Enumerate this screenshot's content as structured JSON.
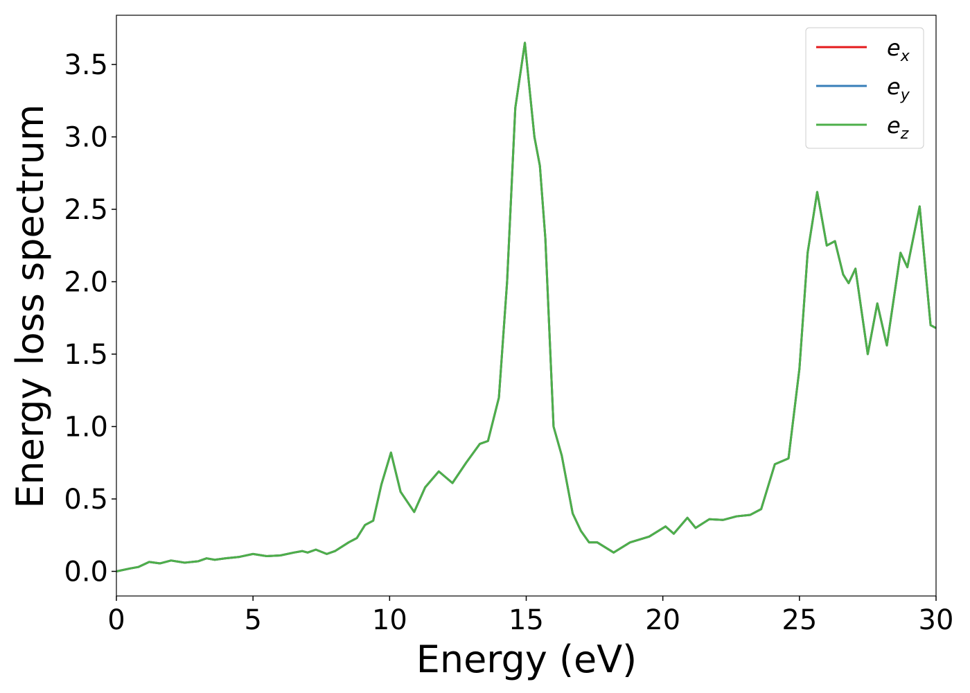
{
  "chart_data": {
    "type": "line",
    "xlabel": "Energy (eV)",
    "ylabel": "Energy loss spectrum",
    "x": [
      0,
      0.5,
      0.8,
      1.2,
      1.6,
      2.0,
      2.5,
      3.0,
      3.3,
      3.6,
      4.0,
      4.5,
      5.0,
      5.5,
      6.0,
      6.5,
      6.8,
      7.0,
      7.3,
      7.7,
      8.0,
      8.5,
      8.8,
      9.1,
      9.4,
      9.7,
      10.05,
      10.4,
      10.9,
      11.3,
      11.8,
      12.3,
      12.8,
      13.3,
      13.6,
      14.0,
      14.3,
      14.6,
      14.95,
      15.3,
      15.5,
      15.7,
      16.0,
      16.3,
      16.7,
      17.0,
      17.3,
      17.6,
      18.2,
      18.8,
      19.5,
      20.1,
      20.4,
      20.9,
      21.2,
      21.7,
      22.2,
      22.7,
      23.2,
      23.6,
      24.1,
      24.6,
      25.0,
      25.3,
      25.65,
      26.0,
      26.3,
      26.6,
      26.8,
      27.05,
      27.5,
      27.85,
      28.2,
      28.7,
      28.95,
      29.4,
      29.8,
      30.0
    ],
    "series": [
      {
        "name": "ex",
        "color": "#e41a1c",
        "values": [
          0.0,
          0.02,
          0.03,
          0.065,
          0.055,
          0.075,
          0.06,
          0.07,
          0.09,
          0.08,
          0.09,
          0.1,
          0.12,
          0.105,
          0.11,
          0.13,
          0.14,
          0.13,
          0.15,
          0.12,
          0.14,
          0.2,
          0.23,
          0.32,
          0.35,
          0.6,
          0.82,
          0.55,
          0.41,
          0.58,
          0.69,
          0.61,
          0.75,
          0.88,
          0.9,
          1.2,
          2.0,
          3.2,
          3.65,
          3.0,
          2.8,
          2.3,
          1.0,
          0.8,
          0.4,
          0.28,
          0.2,
          0.2,
          0.13,
          0.2,
          0.24,
          0.31,
          0.26,
          0.37,
          0.3,
          0.36,
          0.355,
          0.38,
          0.39,
          0.43,
          0.74,
          0.78,
          1.4,
          2.2,
          2.62,
          2.25,
          2.28,
          2.05,
          1.99,
          2.09,
          1.5,
          1.85,
          1.56,
          2.2,
          2.1,
          2.52,
          1.7,
          1.68
        ]
      },
      {
        "name": "ey",
        "color": "#377eb8",
        "values": [
          0.0,
          0.02,
          0.03,
          0.065,
          0.055,
          0.075,
          0.06,
          0.07,
          0.09,
          0.08,
          0.09,
          0.1,
          0.12,
          0.105,
          0.11,
          0.13,
          0.14,
          0.13,
          0.15,
          0.12,
          0.14,
          0.2,
          0.23,
          0.32,
          0.35,
          0.6,
          0.82,
          0.55,
          0.41,
          0.58,
          0.69,
          0.61,
          0.75,
          0.88,
          0.9,
          1.2,
          2.0,
          3.2,
          3.65,
          3.0,
          2.8,
          2.3,
          1.0,
          0.8,
          0.4,
          0.28,
          0.2,
          0.2,
          0.13,
          0.2,
          0.24,
          0.31,
          0.26,
          0.37,
          0.3,
          0.36,
          0.355,
          0.38,
          0.39,
          0.43,
          0.74,
          0.78,
          1.4,
          2.2,
          2.62,
          2.25,
          2.28,
          2.05,
          1.99,
          2.09,
          1.5,
          1.85,
          1.56,
          2.2,
          2.1,
          2.52,
          1.7,
          1.68
        ]
      },
      {
        "name": "ez",
        "color": "#4daf4a",
        "values": [
          0.0,
          0.02,
          0.03,
          0.065,
          0.055,
          0.075,
          0.06,
          0.07,
          0.09,
          0.08,
          0.09,
          0.1,
          0.12,
          0.105,
          0.11,
          0.13,
          0.14,
          0.13,
          0.15,
          0.12,
          0.14,
          0.2,
          0.23,
          0.32,
          0.35,
          0.6,
          0.82,
          0.55,
          0.41,
          0.58,
          0.69,
          0.61,
          0.75,
          0.88,
          0.9,
          1.2,
          2.0,
          3.2,
          3.65,
          3.0,
          2.8,
          2.3,
          1.0,
          0.8,
          0.4,
          0.28,
          0.2,
          0.2,
          0.13,
          0.2,
          0.24,
          0.31,
          0.26,
          0.37,
          0.3,
          0.36,
          0.355,
          0.38,
          0.39,
          0.43,
          0.74,
          0.78,
          1.4,
          2.2,
          2.62,
          2.25,
          2.28,
          2.05,
          1.99,
          2.09,
          1.5,
          1.85,
          1.56,
          2.2,
          2.1,
          2.52,
          1.7,
          1.68
        ]
      }
    ],
    "xlim": [
      0,
      30
    ],
    "xticks": [
      0,
      5,
      10,
      15,
      20,
      25,
      30
    ],
    "ylim": [
      -0.17,
      3.84
    ],
    "yticks": [
      {
        "value": 0,
        "label": "0.0"
      },
      0.5,
      {
        "value": 1,
        "label": "1.0"
      },
      1.5,
      {
        "value": 2,
        "label": "2.0"
      },
      2.5,
      {
        "value": 3,
        "label": "3.0"
      },
      3.5
    ],
    "grid": false,
    "legend": "upper right"
  }
}
